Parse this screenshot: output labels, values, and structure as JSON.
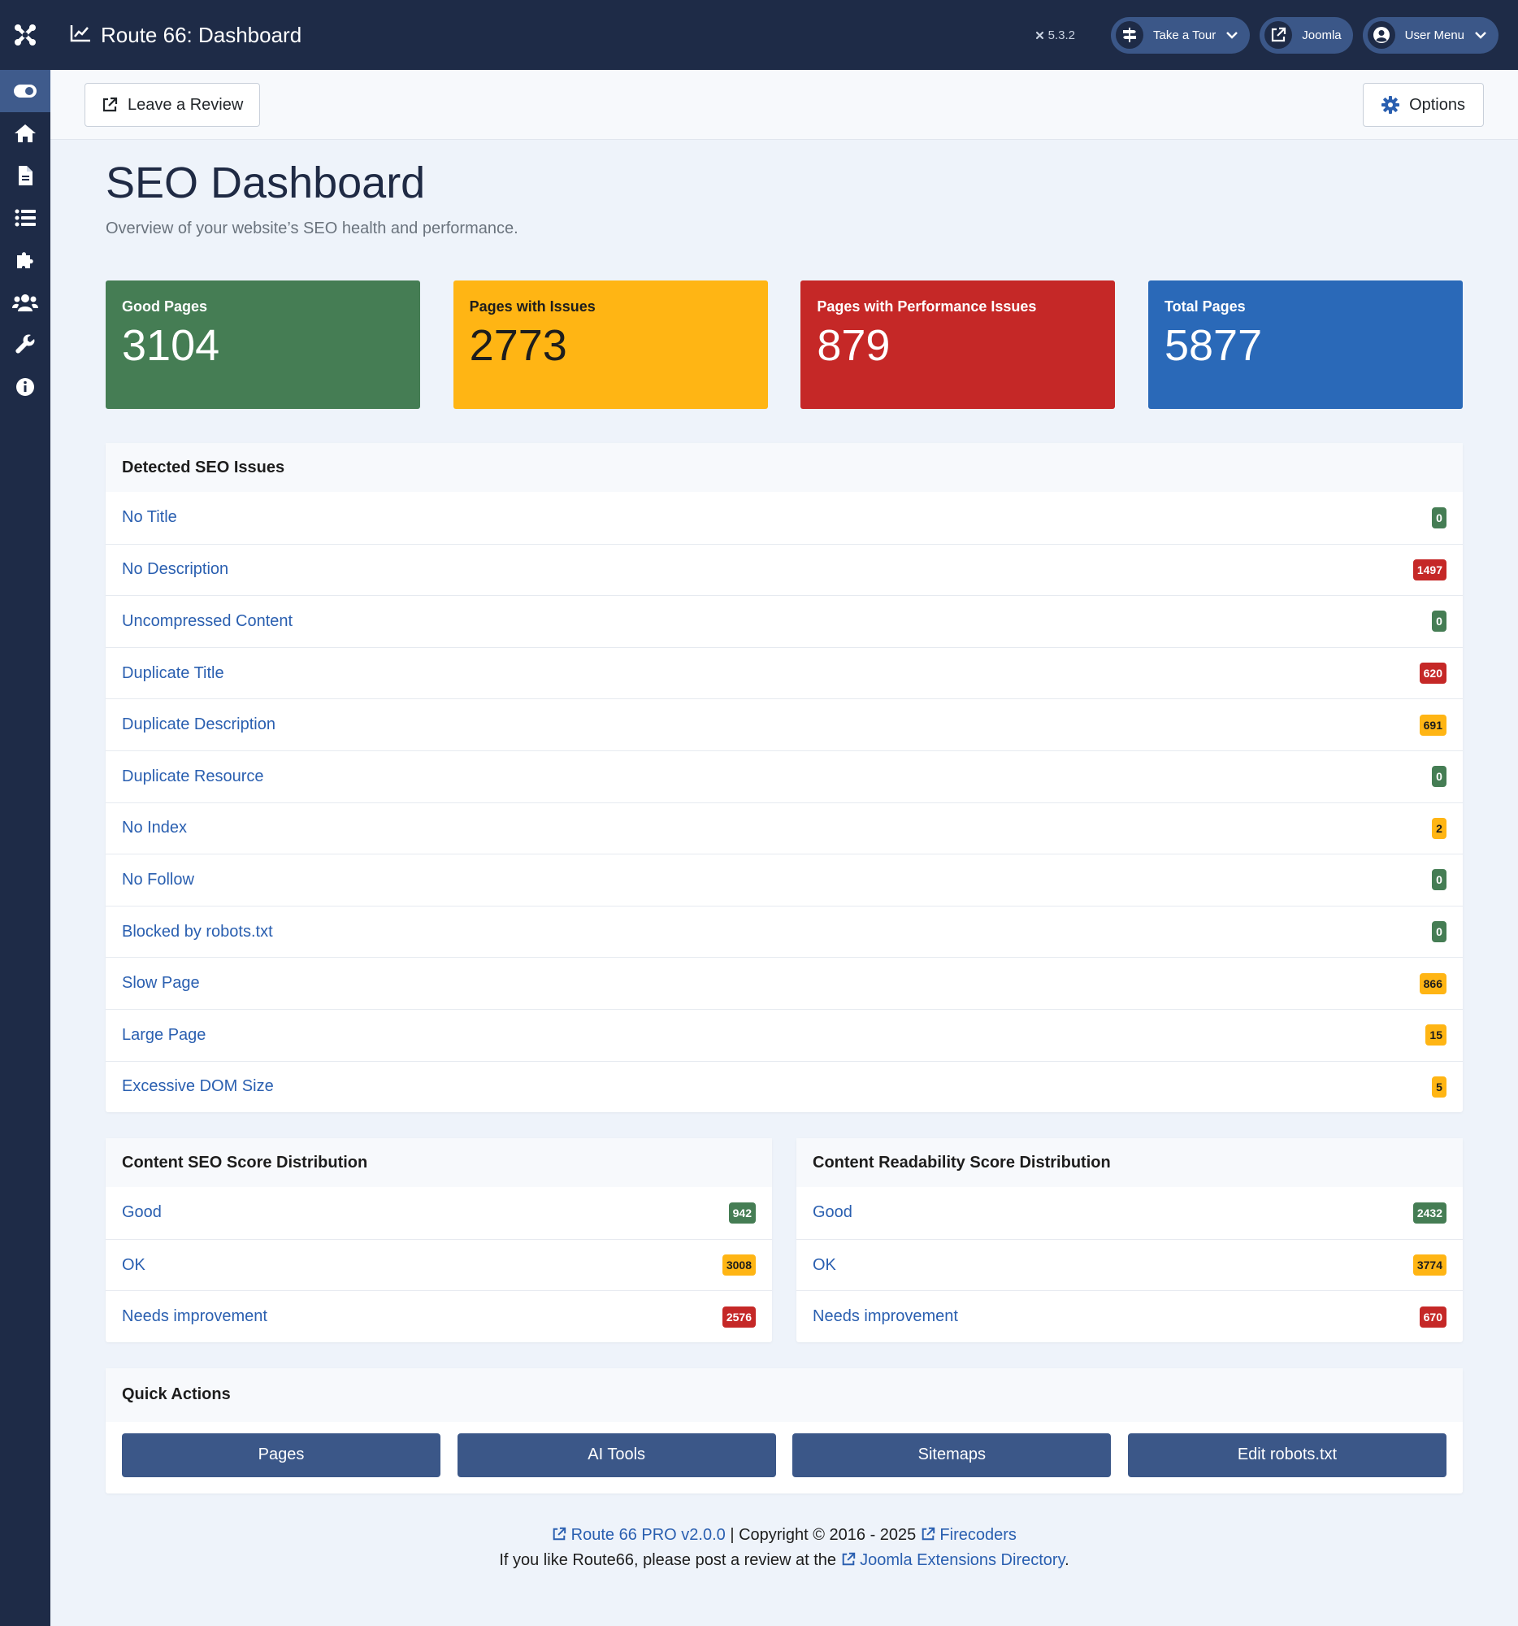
{
  "header": {
    "title": "Route 66: Dashboard",
    "version": "5.3.2",
    "take_tour": "Take a Tour",
    "joomla": "Joomla",
    "user_menu": "User Menu"
  },
  "toolbar": {
    "leave_review": "Leave a Review",
    "options": "Options"
  },
  "page": {
    "title": "SEO Dashboard",
    "subtitle": "Overview of your website’s SEO health and performance."
  },
  "stats": [
    {
      "label": "Good Pages",
      "value": "3104",
      "color": "#457d54"
    },
    {
      "label": "Pages with Issues",
      "value": "2773",
      "color": "#ffb514"
    },
    {
      "label": "Pages with Performance Issues",
      "value": "879",
      "color": "#c52827"
    },
    {
      "label": "Total Pages",
      "value": "5877",
      "color": "#2a69b8"
    }
  ],
  "issues": {
    "title": "Detected SEO Issues",
    "items": [
      {
        "label": "No Title",
        "count": "0",
        "status": "green"
      },
      {
        "label": "No Description",
        "count": "1497",
        "status": "red"
      },
      {
        "label": "Uncompressed Content",
        "count": "0",
        "status": "green"
      },
      {
        "label": "Duplicate Title",
        "count": "620",
        "status": "red"
      },
      {
        "label": "Duplicate Description",
        "count": "691",
        "status": "yellow"
      },
      {
        "label": "Duplicate Resource",
        "count": "0",
        "status": "green"
      },
      {
        "label": "No Index",
        "count": "2",
        "status": "yellow"
      },
      {
        "label": "No Follow",
        "count": "0",
        "status": "green"
      },
      {
        "label": "Blocked by robots.txt",
        "count": "0",
        "status": "green"
      },
      {
        "label": "Slow Page",
        "count": "866",
        "status": "yellow"
      },
      {
        "label": "Large Page",
        "count": "15",
        "status": "yellow"
      },
      {
        "label": "Excessive DOM Size",
        "count": "5",
        "status": "yellow"
      }
    ]
  },
  "seo_dist": {
    "title": "Content SEO Score Distribution",
    "items": [
      {
        "label": "Good",
        "count": "942",
        "status": "green"
      },
      {
        "label": "OK",
        "count": "3008",
        "status": "yellow"
      },
      {
        "label": "Needs improvement",
        "count": "2576",
        "status": "red"
      }
    ]
  },
  "read_dist": {
    "title": "Content Readability Score Distribution",
    "items": [
      {
        "label": "Good",
        "count": "2432",
        "status": "green"
      },
      {
        "label": "OK",
        "count": "3774",
        "status": "yellow"
      },
      {
        "label": "Needs improvement",
        "count": "670",
        "status": "red"
      }
    ]
  },
  "quick_actions": {
    "title": "Quick Actions",
    "buttons": [
      "Pages",
      "AI Tools",
      "Sitemaps",
      "Edit robots.txt"
    ]
  },
  "footer": {
    "product": "Route 66 PRO v2.0.0",
    "copyright": " | Copyright © 2016 - 2025 ",
    "company": "Firecoders",
    "review_text": "If you like Route66, please post a review at the ",
    "jed": "Joomla Extensions Directory",
    "period": "."
  },
  "sidebar": {
    "icons": [
      "toggle-icon",
      "home-icon",
      "file-icon",
      "list-icon",
      "puzzle-icon",
      "users-icon",
      "wrench-icon",
      "info-icon"
    ]
  }
}
